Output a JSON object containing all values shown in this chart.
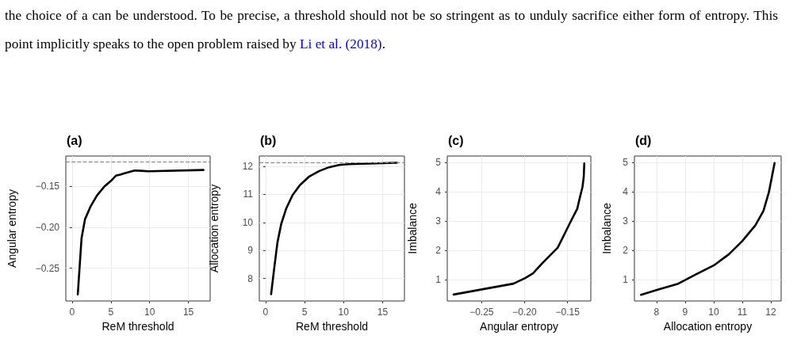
{
  "chart_data": [
    {
      "type": "other",
      "annotations": [
        "the choice of a can be understood. To be precise, a threshold should not be so stringent as to unduly sacrifice either form of entropy. This point implicitly speaks to the open problem raised by",
        "Li et al. (2018)",
        "."
      ]
    },
    {
      "type": "line",
      "title": "(a)",
      "xlabel": "ReM threshold",
      "ylabel": "Angular entropy",
      "xlim": [
        -0.8,
        17.8
      ],
      "ylim": [
        -0.29,
        -0.113
      ],
      "xticks": [
        0,
        5,
        10,
        15
      ],
      "yticks": [
        {
          "value": -0.25,
          "label": "−0.25"
        },
        {
          "value": -0.2,
          "label": "−0.20"
        },
        {
          "value": -0.15,
          "label": "−0.15"
        }
      ],
      "grid": true,
      "marker": "none",
      "line_style": "solid",
      "ref_lines": [
        {
          "axis": "y",
          "value": -0.121,
          "color": "#808080",
          "line_style": "dashed"
        }
      ],
      "series": [
        {
          "color": "#000000",
          "x": [
            0.74,
            1.23,
            1.68,
            2.42,
            3.23,
            4.19,
            5.0,
            5.65,
            6.3,
            6.77,
            8.06,
            8.87,
            9.84,
            16.94
          ],
          "values": [
            -0.282,
            -0.213,
            -0.19,
            -0.174,
            -0.161,
            -0.15,
            -0.1435,
            -0.137,
            -0.1355,
            -0.134,
            -0.1306,
            -0.131,
            -0.1316,
            -0.13
          ]
        }
      ]
    },
    {
      "type": "line",
      "title": "(b)",
      "xlabel": "ReM threshold",
      "ylabel": "Allocation entropy",
      "xlim": [
        -0.8,
        17.8
      ],
      "ylim": [
        7.2,
        12.37
      ],
      "xticks": [
        0,
        5,
        10,
        15
      ],
      "yticks": [
        8,
        9,
        10,
        11,
        12
      ],
      "grid": true,
      "marker": "none",
      "line_style": "solid",
      "ref_lines": [
        {
          "axis": "y",
          "value": 12.14,
          "color": "#808080",
          "line_style": "dashed"
        }
      ],
      "series": [
        {
          "color": "#000000",
          "x": [
            0.71,
            1.1,
            1.52,
            2.0,
            2.65,
            3.45,
            4.42,
            5.55,
            6.84,
            8.13,
            9.42,
            10.71,
            13.29,
            16.84
          ],
          "values": [
            7.44,
            8.35,
            9.28,
            9.94,
            10.5,
            10.97,
            11.34,
            11.63,
            11.83,
            11.97,
            12.05,
            12.08,
            12.1,
            12.13
          ]
        }
      ]
    },
    {
      "type": "line",
      "title": "(c)",
      "xlabel": "Angular entropy",
      "ylabel": "Imbalance",
      "xlim": [
        -0.29,
        -0.123
      ],
      "ylim": [
        0.27,
        5.21
      ],
      "xticks": [
        {
          "value": -0.25,
          "label": "−0.25"
        },
        {
          "value": -0.2,
          "label": "−0.20"
        },
        {
          "value": -0.15,
          "label": "−0.15"
        }
      ],
      "yticks": [
        1,
        2,
        3,
        4,
        5
      ],
      "grid": true,
      "marker": "none",
      "line_style": "solid",
      "series": [
        {
          "color": "#000000",
          "x": [
            -0.2827,
            -0.213,
            -0.1994,
            -0.1903,
            -0.1797,
            -0.1706,
            -0.1615,
            -0.1555,
            -0.1494,
            -0.1448,
            -0.1388,
            -0.1358,
            -0.1327,
            -0.1312,
            -0.1306
          ],
          "values": [
            0.49,
            0.86,
            1.05,
            1.21,
            1.55,
            1.82,
            2.09,
            2.44,
            2.8,
            3.07,
            3.41,
            3.79,
            4.15,
            4.51,
            4.96
          ]
        }
      ]
    },
    {
      "type": "line",
      "title": "(d)",
      "xlabel": "Allocation entropy",
      "ylabel": "Imbalance",
      "xlim": [
        7.23,
        12.36
      ],
      "ylim": [
        0.27,
        5.21
      ],
      "xticks": [
        8,
        9,
        10,
        11,
        12
      ],
      "yticks": [
        1,
        2,
        3,
        4,
        5
      ],
      "grid": true,
      "marker": "none",
      "line_style": "solid",
      "series": [
        {
          "color": "#000000",
          "x": [
            7.46,
            8.02,
            8.76,
            9.41,
            10.0,
            10.53,
            11.0,
            11.46,
            11.74,
            11.93,
            12.13
          ],
          "values": [
            0.48,
            0.65,
            0.86,
            1.19,
            1.48,
            1.86,
            2.31,
            2.85,
            3.34,
            3.97,
            4.97
          ]
        }
      ]
    }
  ]
}
